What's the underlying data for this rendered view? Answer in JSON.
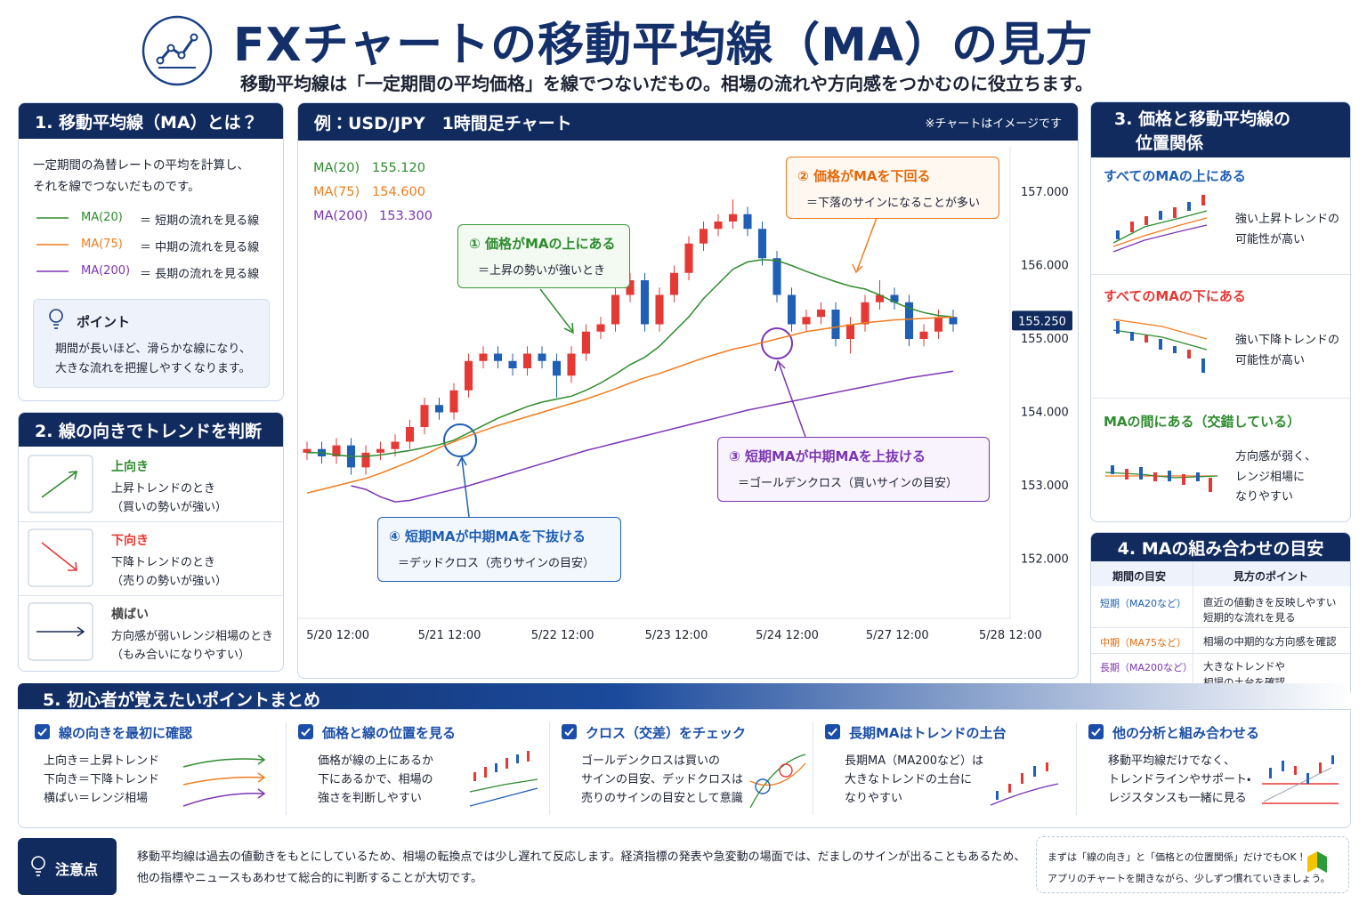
{
  "header": {
    "title": "FXチャートの移動平均線（MA）の見方",
    "subtitle": "移動平均線は「一定期間の平均価格」を線でつないだもの。相場の流れや方向感をつかむのに役立ちます。"
  },
  "section1": {
    "heading": "1. 移動平均線（MA）とは？",
    "body": [
      "一定期間の為替レートの平均を計算し、",
      "それを線でつないだものです。"
    ],
    "lines": [
      {
        "label": "MA(20)",
        "desc": "＝ 短期の流れを見る線"
      },
      {
        "label": "MA(75)",
        "desc": "＝ 中期の流れを見る線"
      },
      {
        "label": "MA(200)",
        "desc": "＝ 長期の流れを見る線"
      }
    ],
    "point": {
      "title": "ポイント",
      "body": [
        "期間が長いほど、滑らかな線になり、",
        "大きな流れを把握しやすくなります。"
      ]
    }
  },
  "section2": {
    "heading": "2. 線の向きでトレンドを判断",
    "items": [
      {
        "title": "上向き",
        "lines": [
          "上昇トレンドのとき",
          "（買いの勢いが強い）"
        ]
      },
      {
        "title": "下向き",
        "lines": [
          "下降トレンドのとき",
          "（売りの勢いが強い）"
        ]
      },
      {
        "title": "横ばい",
        "lines": [
          "方向感が弱いレンジ相場のとき",
          "（もみ合いになりやすい）"
        ]
      }
    ]
  },
  "section3": {
    "heading": [
      "3. 価格と移動平均線の",
      "位置関係"
    ],
    "items": [
      {
        "title": "すべてのMAの上にある",
        "lines": [
          "強い上昇トレンドの",
          "可能性が高い"
        ]
      },
      {
        "title": "すべてのMAの下にある",
        "lines": [
          "強い下降トレンドの",
          "可能性が高い"
        ]
      },
      {
        "title": "MAの間にある（交錯している）",
        "lines": [
          "方向感が弱く、",
          "レンジ相場に",
          "なりやすい"
        ]
      }
    ]
  },
  "section4": {
    "heading": "4. MAの組み合わせの目安",
    "columns": [
      "期間の目安",
      "見方のポイント"
    ],
    "rows": [
      {
        "term": "短期（MA20など）",
        "lines": [
          "直近の値動きを反映しやすい",
          "短期的な流れを見る"
        ]
      },
      {
        "term": "中期（MA75など）",
        "lines": [
          "相場の中期的な方向感を確認"
        ]
      },
      {
        "term": "長期（MA200など）",
        "lines": [
          "大きなトレンドや",
          "相場の土台を確認"
        ]
      }
    ]
  },
  "section5": {
    "heading": "5. 初心者が覚えたいポイントまとめ",
    "items": [
      {
        "title": "線の向きを最初に確認",
        "lines": [
          "上向き＝上昇トレンド",
          "下向き＝下降トレンド",
          "横ばい＝レンジ相場"
        ]
      },
      {
        "title": "価格と線の位置を見る",
        "lines": [
          "価格が線の上にあるか",
          "下にあるかで、相場の",
          "強さを判断しやすい"
        ]
      },
      {
        "title": "クロス（交差）をチェック",
        "lines": [
          "ゴールデンクロスは買いの",
          "サインの目安、デッドクロスは",
          "売りのサインの目安として意識"
        ]
      },
      {
        "title": "長期MAはトレンドの土台",
        "lines": [
          "長期MA（MA200など）は",
          "大きなトレンドの土台に",
          "なりやすい"
        ]
      },
      {
        "title": "他の分析と組み合わせる",
        "lines": [
          "移動平均線だけでなく、",
          "トレンドラインやサポート・",
          "レジスタンスも一緒に見る"
        ]
      }
    ]
  },
  "caution": {
    "label": "注意点",
    "lines": [
      "移動平均線は過去の値動きをもとにしているため、相場の転換点では少し遅れて反応します。経済指標の発表や急変動の場面では、だましのサインが出ることもあるため、",
      "他の指標やニュースもあわせて総合的に判断することが大切です。"
    ],
    "tip": [
      "まずは「線の向き」と「価格との位置関係」だけでもOK！",
      "アプリのチャートを開きながら、少しずつ慣れていきましょう。"
    ]
  },
  "chart_data": {
    "type": "candlestick",
    "title": "例：USD/JPY　1時間足チャート",
    "note": "※チャートはイメージです",
    "x": [
      0,
      1,
      2,
      3,
      4,
      5,
      6,
      7,
      8,
      9,
      10,
      11,
      12,
      13,
      14,
      15,
      16,
      17,
      18,
      19,
      20,
      21,
      22,
      23,
      24,
      25,
      26,
      27,
      28,
      29,
      30,
      31,
      32,
      33,
      34,
      35,
      36,
      37,
      38,
      39,
      40,
      41,
      42,
      43,
      44
    ],
    "open": [
      153.45,
      153.5,
      153.4,
      153.55,
      153.25,
      153.45,
      153.5,
      153.6,
      153.8,
      154.1,
      154.0,
      154.3,
      154.7,
      154.8,
      154.7,
      154.6,
      154.8,
      154.7,
      154.5,
      154.8,
      155.1,
      155.2,
      155.6,
      155.8,
      155.2,
      155.6,
      155.9,
      156.3,
      156.5,
      156.6,
      156.7,
      156.5,
      156.1,
      155.6,
      155.2,
      155.3,
      155.4,
      155.0,
      155.2,
      155.5,
      155.6,
      155.5,
      155.0,
      155.1,
      155.3
    ],
    "high": [
      153.6,
      153.6,
      153.65,
      153.65,
      153.55,
      153.6,
      153.7,
      153.9,
      154.2,
      154.2,
      154.4,
      154.8,
      154.9,
      154.9,
      154.8,
      154.9,
      154.9,
      154.8,
      154.9,
      155.2,
      155.3,
      155.7,
      155.9,
      155.9,
      155.7,
      156.0,
      156.4,
      156.6,
      156.7,
      156.9,
      156.8,
      156.6,
      156.2,
      155.7,
      155.4,
      155.5,
      155.5,
      155.3,
      155.6,
      155.8,
      155.7,
      155.6,
      155.2,
      155.4,
      155.4
    ],
    "low": [
      153.35,
      153.3,
      153.3,
      153.15,
      153.15,
      153.35,
      153.4,
      153.5,
      153.7,
      153.9,
      153.9,
      154.2,
      154.6,
      154.6,
      154.5,
      154.5,
      154.6,
      154.2,
      154.4,
      154.7,
      155.0,
      155.1,
      155.5,
      155.1,
      155.1,
      155.5,
      155.8,
      156.2,
      156.4,
      156.5,
      156.4,
      156.0,
      155.5,
      155.1,
      155.1,
      155.2,
      154.9,
      154.8,
      155.1,
      155.4,
      155.4,
      154.9,
      154.9,
      155.0,
      155.1
    ],
    "close": [
      153.5,
      153.4,
      153.55,
      153.25,
      153.45,
      153.5,
      153.6,
      153.8,
      154.1,
      154.0,
      154.3,
      154.7,
      154.8,
      154.7,
      154.6,
      154.8,
      154.7,
      154.5,
      154.8,
      155.1,
      155.2,
      155.6,
      155.8,
      155.2,
      155.6,
      155.9,
      156.3,
      156.5,
      156.6,
      156.7,
      156.5,
      156.1,
      155.6,
      155.2,
      155.3,
      155.4,
      155.0,
      155.2,
      155.5,
      155.6,
      155.5,
      155.0,
      155.1,
      155.3,
      155.2
    ],
    "up_color": "#e53935",
    "down_color": "#1f5fb5",
    "series": [
      {
        "name": "MA(20)",
        "color": "#2e8b2e",
        "legend_value": {
          "value": 155.12,
          "label": "155.120"
        },
        "values": [
          153.45,
          153.45,
          153.42,
          153.4,
          153.4,
          153.42,
          153.45,
          153.48,
          153.52,
          153.56,
          153.62,
          153.72,
          153.82,
          153.92,
          154.0,
          154.08,
          154.14,
          154.18,
          154.22,
          154.3,
          154.4,
          154.52,
          154.65,
          154.75,
          154.9,
          155.1,
          155.3,
          155.55,
          155.75,
          155.95,
          156.05,
          156.08,
          156.07,
          156.0,
          155.92,
          155.85,
          155.78,
          155.72,
          155.68,
          155.6,
          155.5,
          155.42,
          155.36,
          155.32,
          155.3
        ]
      },
      {
        "name": "MA(75)",
        "color": "#f07c1e",
        "legend_value": {
          "value": 154.6,
          "label": "154.600"
        },
        "values": [
          152.9,
          152.95,
          153.0,
          153.05,
          153.1,
          153.17,
          153.25,
          153.33,
          153.42,
          153.52,
          153.6,
          153.68,
          153.75,
          153.82,
          153.88,
          153.94,
          154.0,
          154.06,
          154.12,
          154.18,
          154.25,
          154.32,
          154.4,
          154.47,
          154.53,
          154.6,
          154.67,
          154.74,
          154.8,
          154.86,
          154.9,
          154.95,
          155.0,
          155.05,
          155.1,
          155.13,
          155.16,
          155.19,
          155.22,
          155.24,
          155.26,
          155.27,
          155.28,
          155.29,
          155.3
        ]
      },
      {
        "name": "MA(200)",
        "color": "#7b35b5",
        "legend_value": {
          "value": 153.3,
          "label": "153.300"
        },
        "values": [
          null,
          null,
          null,
          153.0,
          152.95,
          152.85,
          152.78,
          152.8,
          152.85,
          152.9,
          152.95,
          153.0,
          153.06,
          153.12,
          153.18,
          153.24,
          153.3,
          153.36,
          153.42,
          153.48,
          153.53,
          153.58,
          153.63,
          153.68,
          153.73,
          153.78,
          153.83,
          153.88,
          153.93,
          153.98,
          154.03,
          154.07,
          154.11,
          154.15,
          154.19,
          154.23,
          154.27,
          154.31,
          154.35,
          154.39,
          154.43,
          154.47,
          154.5,
          154.53,
          154.56
        ]
      }
    ],
    "current_price": {
      "value": 155.25,
      "label": "155.250"
    },
    "xlim": [
      -1,
      49
    ],
    "xticks": [
      {
        "value": 2.1,
        "label": "5/20  12:00"
      },
      {
        "value": 9.7,
        "label": "5/21  12:00"
      },
      {
        "value": 17.4,
        "label": "5/22  12:00"
      },
      {
        "value": 25.15,
        "label": "5/23  12:00"
      },
      {
        "value": 32.7,
        "label": "5/24  12:00"
      },
      {
        "value": 40.2,
        "label": "5/27  12:00"
      },
      {
        "value": 47.9,
        "label": "5/28  12:00"
      }
    ],
    "ylim": [
      151.2,
      157.6
    ],
    "yticks": [
      {
        "value": 152,
        "label": "152.000"
      },
      {
        "value": 153,
        "label": "153.000"
      },
      {
        "value": 154,
        "label": "154.000"
      },
      {
        "value": 155,
        "label": "155.000"
      },
      {
        "value": 156,
        "label": "156.000"
      },
      {
        "value": 157,
        "label": "157.000"
      }
    ],
    "grid": false,
    "annotations": [
      {
        "number": "①",
        "title": "価格がMAの上にある",
        "text": "＝上昇の勢いが強いとき"
      },
      {
        "number": "②",
        "title": "価格がMAを下回る",
        "text": "＝下落のサインになることが多い"
      },
      {
        "number": "③",
        "title": "短期MAが中期MAを上抜ける",
        "text": "＝ゴールデンクロス（買いサインの目安）"
      },
      {
        "number": "④",
        "title": "短期MAが中期MAを下抜ける",
        "text": "＝デッドクロス（売りサインの目安）"
      }
    ]
  }
}
